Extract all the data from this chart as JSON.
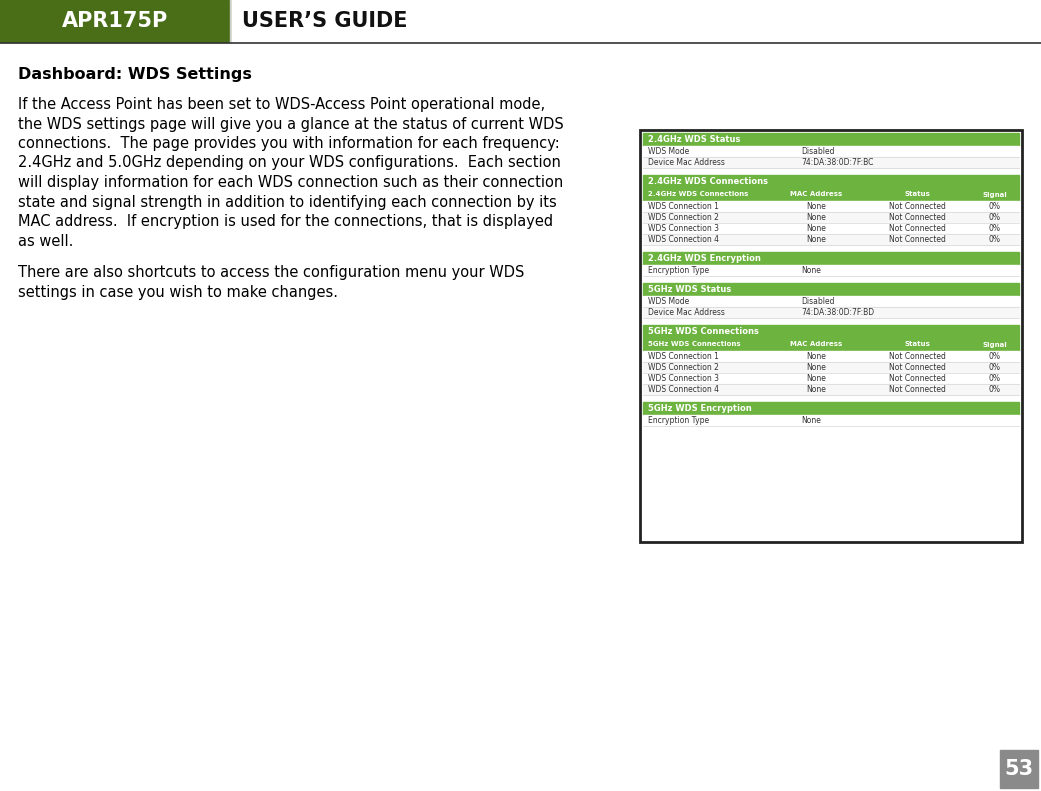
{
  "header_bg_color": "#4a6e18",
  "header_text1": "APR175P",
  "header_text2": "USER’S GUIDE",
  "header_text_color": "#ffffff",
  "header_text2_color": "#111111",
  "page_bg": "#ffffff",
  "title": "Dashboard: WDS Settings",
  "body_text": [
    "If the Access Point has been set to WDS-Access Point operational mode,",
    "the WDS settings page will give you a glance at the status of current WDS",
    "connections.  The page provides you with information for each frequency:",
    "2.4GHz and 5.0GHz depending on your WDS configurations.  Each section",
    "will display information for each WDS connection such as their connection",
    "state and signal strength in addition to identifying each connection by its",
    "MAC address.  If encryption is used for the connections, that is displayed",
    "as well."
  ],
  "body_text2": [
    "There are also shortcuts to access the configuration menu your WDS",
    "settings in case you wish to make changes."
  ],
  "green_color": "#6db33f",
  "page_number": "53",
  "page_num_bg": "#8a8a8a",
  "page_num_color": "#ffffff",
  "sections": [
    {
      "header": "2.4GHz WDS Status",
      "rows": [
        [
          "WDS Mode",
          "Disabled"
        ],
        [
          "Device Mac Address",
          "74:DA:38:0D:7F:BC"
        ]
      ],
      "type": "status"
    },
    {
      "header": "2.4GHz WDS Connections",
      "columns": [
        "2.4GHz WDS Connections",
        "MAC Address",
        "Status",
        "Signal"
      ],
      "rows": [
        [
          "WDS Connection 1",
          "None",
          "Not Connected",
          "0%"
        ],
        [
          "WDS Connection 2",
          "None",
          "Not Connected",
          "0%"
        ],
        [
          "WDS Connection 3",
          "None",
          "Not Connected",
          "0%"
        ],
        [
          "WDS Connection 4",
          "None",
          "Not Connected",
          "0%"
        ]
      ],
      "type": "connections"
    },
    {
      "header": "2.4GHz WDS Encryption",
      "rows": [
        [
          "Encryption Type",
          "None"
        ]
      ],
      "type": "status"
    },
    {
      "header": "5GHz WDS Status",
      "rows": [
        [
          "WDS Mode",
          "Disabled"
        ],
        [
          "Device Mac Address",
          "74:DA:38:0D:7F:BD"
        ]
      ],
      "type": "status"
    },
    {
      "header": "5GHz WDS Connections",
      "columns": [
        "5GHz WDS Connections",
        "MAC Address",
        "Status",
        "Signal"
      ],
      "rows": [
        [
          "WDS Connection 1",
          "None",
          "Not Connected",
          "0%"
        ],
        [
          "WDS Connection 2",
          "None",
          "Not Connected",
          "0%"
        ],
        [
          "WDS Connection 3",
          "None",
          "Not Connected",
          "0%"
        ],
        [
          "WDS Connection 4",
          "None",
          "Not Connected",
          "0%"
        ]
      ],
      "type": "connections"
    },
    {
      "header": "5GHz WDS Encryption",
      "rows": [
        [
          "Encryption Type",
          "None"
        ]
      ],
      "type": "status"
    }
  ]
}
